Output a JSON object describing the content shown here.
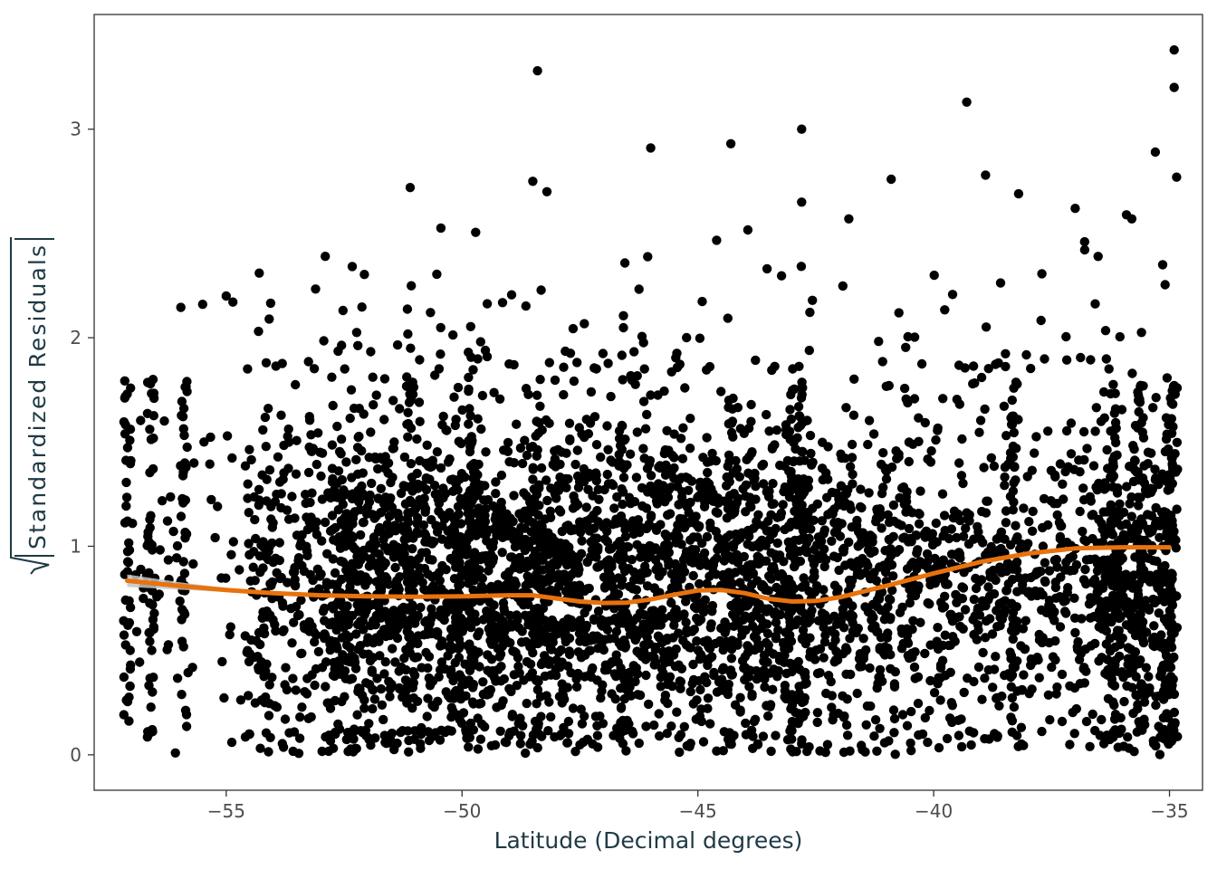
{
  "chart_data": {
    "type": "scatter",
    "xlabel": "Latitude (Decimal degrees)",
    "ylabel": "Standardized Residuals",
    "ylabel_sqrt_notation": true,
    "xlim": [
      -57.8,
      -34.3
    ],
    "ylim": [
      -0.17,
      3.55
    ],
    "x_ticks": [
      {
        "value": -55,
        "label": "−55"
      },
      {
        "value": -50,
        "label": "−50"
      },
      {
        "value": -45,
        "label": "−45"
      },
      {
        "value": -40,
        "label": "−40"
      },
      {
        "value": -35,
        "label": "−35"
      }
    ],
    "y_ticks": [
      {
        "value": 0,
        "label": "0"
      },
      {
        "value": 1,
        "label": "1"
      },
      {
        "value": 2,
        "label": "2"
      },
      {
        "value": 3,
        "label": "3"
      }
    ],
    "grid": false,
    "legend": "none",
    "series": [
      {
        "kind": "points",
        "color": "#000000",
        "x_range": [
          -57.1,
          -34.9
        ],
        "y_range": [
          0.0,
          3.4
        ],
        "outliers": [
          {
            "x": -48.4,
            "y": 3.28
          },
          {
            "x": -34.9,
            "y": 3.38
          },
          {
            "x": -34.9,
            "y": 3.2
          },
          {
            "x": -39.3,
            "y": 3.13
          },
          {
            "x": -35.3,
            "y": 2.89
          },
          {
            "x": -42.8,
            "y": 3.0
          },
          {
            "x": -44.3,
            "y": 2.93
          },
          {
            "x": -46.0,
            "y": 2.91
          },
          {
            "x": -38.9,
            "y": 2.78
          },
          {
            "x": -34.85,
            "y": 2.77
          },
          {
            "x": -48.5,
            "y": 2.75
          },
          {
            "x": -40.9,
            "y": 2.76
          },
          {
            "x": -51.1,
            "y": 2.72
          },
          {
            "x": -48.2,
            "y": 2.7
          },
          {
            "x": -52.9,
            "y": 2.39
          },
          {
            "x": -54.3,
            "y": 2.31
          },
          {
            "x": -57.1,
            "y": 1.73
          },
          {
            "x": -55.0,
            "y": 2.2
          },
          {
            "x": -55.5,
            "y": 2.16
          },
          {
            "x": -38.2,
            "y": 2.69
          },
          {
            "x": -37.0,
            "y": 2.62
          },
          {
            "x": -35.8,
            "y": 2.57
          },
          {
            "x": -41.8,
            "y": 2.57
          },
          {
            "x": -36.8,
            "y": 2.46
          },
          {
            "x": -42.8,
            "y": 2.65
          }
        ]
      },
      {
        "kind": "smooth",
        "color": "#e8720c",
        "band_color": "#c4c4c4",
        "x": [
          -57.1,
          -56.0,
          -55.0,
          -54.0,
          -53.0,
          -52.0,
          -51.0,
          -50.0,
          -49.0,
          -48.5,
          -48.0,
          -47.5,
          -47.0,
          -46.5,
          -46.0,
          -45.5,
          -45.0,
          -44.5,
          -44.0,
          -43.5,
          -43.0,
          -42.5,
          -42.0,
          -41.0,
          -40.0,
          -39.0,
          -38.0,
          -37.0,
          -36.0,
          -35.0
        ],
        "y": [
          0.835,
          0.81,
          0.79,
          0.775,
          0.765,
          0.76,
          0.758,
          0.76,
          0.765,
          0.765,
          0.75,
          0.735,
          0.728,
          0.73,
          0.745,
          0.768,
          0.788,
          0.79,
          0.775,
          0.748,
          0.735,
          0.738,
          0.755,
          0.81,
          0.87,
          0.925,
          0.965,
          0.99,
          0.995,
          0.995
        ],
        "band_halfwidth": [
          0.03,
          0.018,
          0.01,
          0.006,
          0.004,
          0.004,
          0.004,
          0.004,
          0.004,
          0.004,
          0.004,
          0.004,
          0.004,
          0.004,
          0.004,
          0.004,
          0.004,
          0.004,
          0.004,
          0.004,
          0.004,
          0.004,
          0.004,
          0.004,
          0.004,
          0.004,
          0.004,
          0.004,
          0.004,
          0.006
        ]
      }
    ]
  }
}
